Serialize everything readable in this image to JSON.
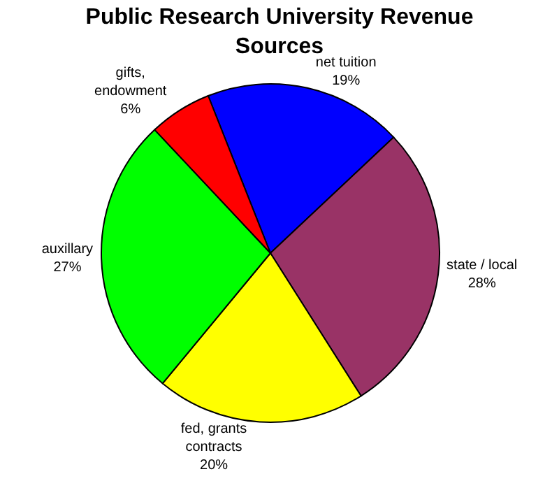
{
  "chart_data": {
    "type": "pie",
    "title": "Public Research University Revenue Sources",
    "categories": [
      "net tuition",
      "state / local",
      "fed, grants contracts",
      "auxillary",
      "gifts, endowment"
    ],
    "values": [
      19,
      28,
      20,
      27,
      6
    ],
    "colors": [
      "#0000ff",
      "#993366",
      "#ffff00",
      "#00ff00",
      "#ff0000"
    ],
    "value_labels": [
      "19%",
      "28%",
      "20%",
      "27%",
      "6%"
    ],
    "legend": false
  }
}
